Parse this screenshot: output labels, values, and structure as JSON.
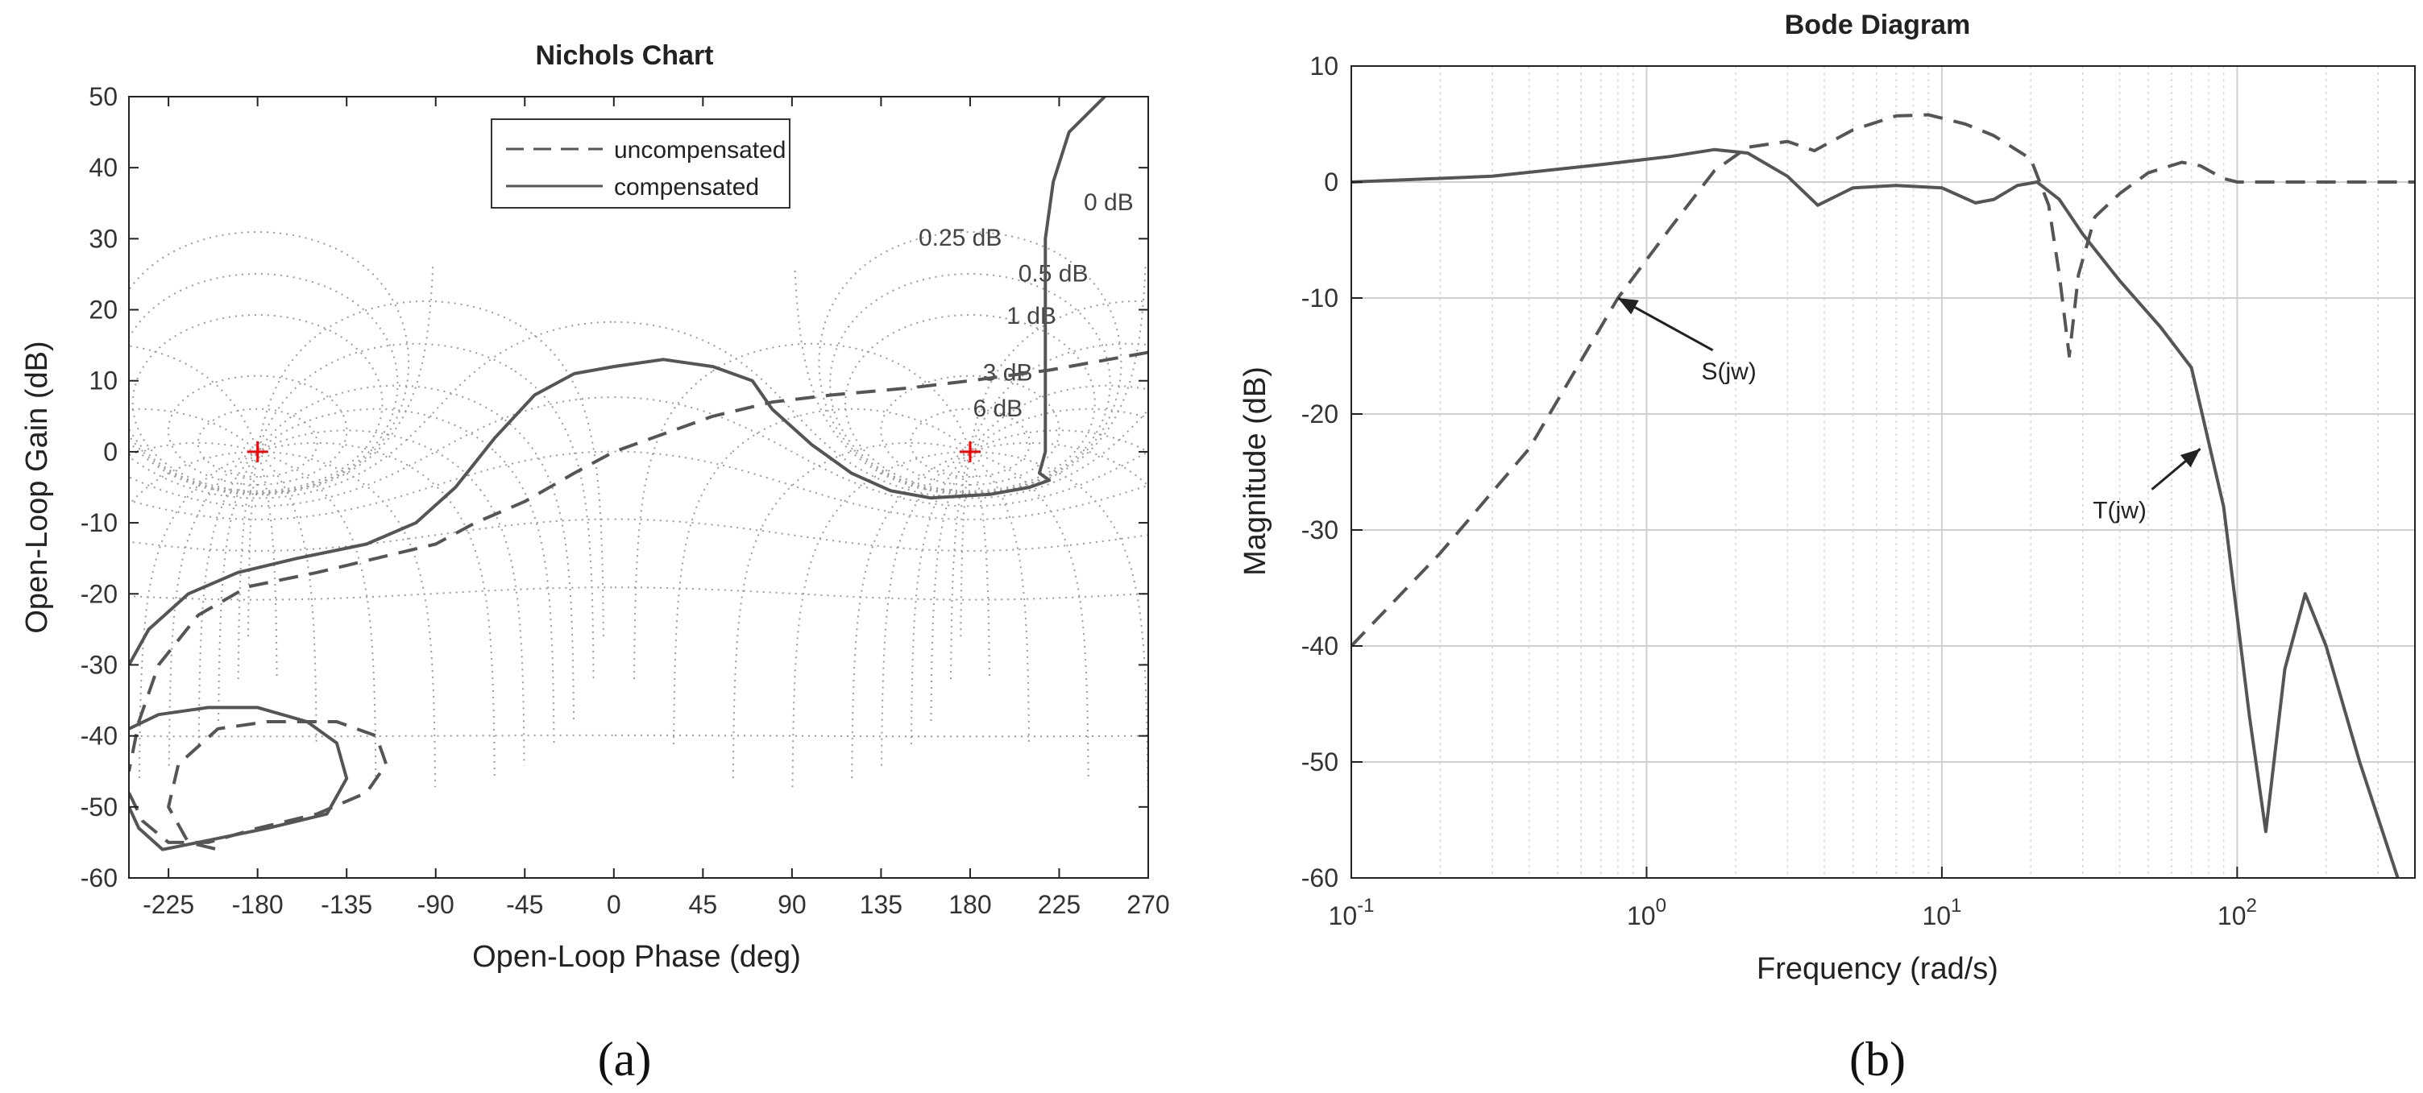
{
  "panel_labels": {
    "a": "(a)",
    "b": "(b)"
  },
  "colors": {
    "curve": "#555555",
    "grid": "#9a9a9a",
    "marker": "#ff0000",
    "axis": "#222222"
  },
  "chart_data": [
    {
      "type": "line",
      "title": "Nichols Chart",
      "xlabel": "Open-Loop Phase (deg)",
      "ylabel": "Open-Loop Gain (dB)",
      "xlim": [
        -245,
        270
      ],
      "ylim": [
        -60,
        50
      ],
      "xticks": [
        -225,
        -180,
        -135,
        -90,
        -45,
        0,
        45,
        90,
        135,
        180,
        225,
        270
      ],
      "yticks": [
        -60,
        -50,
        -40,
        -30,
        -20,
        -10,
        0,
        10,
        20,
        30,
        40,
        50
      ],
      "tick_labels_x": [
        "-225",
        "-180",
        "-135",
        "-90",
        "-45",
        "0",
        "45",
        "90",
        "135",
        "180",
        "225",
        "270"
      ],
      "tick_labels_y": [
        "-60",
        "-50",
        "-40",
        "-30",
        "-20",
        "-10",
        "0",
        "10",
        "20",
        "30",
        "40",
        "50"
      ],
      "legend": {
        "position": "top-center",
        "entries": [
          {
            "label": "uncompensated",
            "style": "dashed"
          },
          {
            "label": "compensated",
            "style": "solid"
          }
        ]
      },
      "grid_labels": [
        {
          "text": "0 dB",
          "x": 250,
          "y": 34
        },
        {
          "text": "0.25 dB",
          "x": 175,
          "y": 29
        },
        {
          "text": "0.5 dB",
          "x": 222,
          "y": 24
        },
        {
          "text": "1 dB",
          "x": 211,
          "y": 18
        },
        {
          "text": "3 dB",
          "x": 199,
          "y": 10
        },
        {
          "text": "6 dB",
          "x": 194,
          "y": 5
        }
      ],
      "markers": [
        {
          "x": -180,
          "y": 0
        },
        {
          "x": 180,
          "y": 0
        }
      ],
      "series": [
        {
          "name": "uncompensated",
          "style": "dashed",
          "points": [
            [
              270,
              14
            ],
            [
              220,
              11.5
            ],
            [
              180,
              10
            ],
            [
              150,
              9
            ],
            [
              110,
              8
            ],
            [
              80,
              7
            ],
            [
              50,
              5
            ],
            [
              20,
              2
            ],
            [
              0,
              0
            ],
            [
              -20,
              -3
            ],
            [
              -45,
              -7
            ],
            [
              -70,
              -10
            ],
            [
              -90,
              -13
            ],
            [
              -120,
              -15
            ],
            [
              -150,
              -17
            ],
            [
              -185,
              -19
            ],
            [
              -210,
              -23
            ],
            [
              -230,
              -30
            ],
            [
              -240,
              -38
            ],
            [
              -245,
              -45
            ]
          ]
        },
        {
          "name": "uncompensated-loop",
          "style": "dashed",
          "points": [
            [
              -245,
              -48
            ],
            [
              -238,
              -52
            ],
            [
              -225,
              -55
            ],
            [
              -205,
              -55
            ],
            [
              -180,
              -53
            ],
            [
              -150,
              -51
            ],
            [
              -125,
              -48
            ],
            [
              -115,
              -44
            ],
            [
              -120,
              -40
            ],
            [
              -140,
              -38
            ],
            [
              -175,
              -38
            ],
            [
              -200,
              -39
            ],
            [
              -220,
              -44
            ],
            [
              -225,
              -50
            ],
            [
              -215,
              -55
            ],
            [
              -200,
              -56
            ]
          ]
        },
        {
          "name": "compensated",
          "style": "solid",
          "points": [
            [
              248,
              50
            ],
            [
              230,
              45
            ],
            [
              222,
              38
            ],
            [
              218,
              30
            ],
            [
              218,
              20
            ],
            [
              218,
              10
            ],
            [
              218,
              0
            ],
            [
              215,
              -3
            ],
            [
              220,
              -4
            ],
            [
              210,
              -5
            ],
            [
              190,
              -6
            ],
            [
              160,
              -6.5
            ],
            [
              140,
              -5.5
            ],
            [
              120,
              -3
            ],
            [
              100,
              1
            ],
            [
              80,
              6
            ],
            [
              70,
              10
            ],
            [
              50,
              12
            ],
            [
              25,
              13
            ],
            [
              0,
              12
            ],
            [
              -20,
              11
            ],
            [
              -40,
              8
            ],
            [
              -60,
              2
            ],
            [
              -80,
              -5
            ],
            [
              -100,
              -10
            ],
            [
              -125,
              -13
            ],
            [
              -160,
              -15
            ],
            [
              -190,
              -17
            ],
            [
              -215,
              -20
            ],
            [
              -235,
              -25
            ],
            [
              -245,
              -30
            ]
          ]
        },
        {
          "name": "compensated-loop",
          "style": "solid",
          "points": [
            [
              -245,
              -39
            ],
            [
              -230,
              -37
            ],
            [
              -205,
              -36
            ],
            [
              -180,
              -36
            ],
            [
              -155,
              -38
            ],
            [
              -140,
              -41
            ],
            [
              -135,
              -46
            ],
            [
              -145,
              -51
            ],
            [
              -175,
              -53
            ],
            [
              -210,
              -55
            ],
            [
              -228,
              -56
            ],
            [
              -240,
              -53
            ],
            [
              -245,
              -50
            ]
          ]
        }
      ]
    },
    {
      "type": "line",
      "title": "Bode Diagram",
      "xlabel": "Frequency  (rad/s)",
      "ylabel": "Magnitude (dB)",
      "xscale": "log",
      "xlim": [
        0.1,
        400
      ],
      "ylim": [
        -60,
        10
      ],
      "xticks": [
        0.1,
        1,
        10,
        100
      ],
      "tick_labels_x": [
        {
          "base": "10",
          "exp": "-1"
        },
        {
          "base": "10",
          "exp": "0"
        },
        {
          "base": "10",
          "exp": "1"
        },
        {
          "base": "10",
          "exp": "2"
        }
      ],
      "yticks": [
        -60,
        -50,
        -40,
        -30,
        -20,
        -10,
        0,
        10
      ],
      "tick_labels_y": [
        "-60",
        "-50",
        "-40",
        "-30",
        "-20",
        "-10",
        "0",
        "10"
      ],
      "annotations": [
        {
          "text": "S(jw)",
          "text_x": 1.9,
          "text_y": -17,
          "arrow_to_x": 0.8,
          "arrow_to_y": -10
        },
        {
          "text": "T(jw)",
          "text_x": 40,
          "text_y": -29,
          "arrow_to_x": 75,
          "arrow_to_y": -23
        }
      ],
      "series": [
        {
          "name": "S(jw)",
          "style": "dashed",
          "points": [
            [
              0.1,
              -40
            ],
            [
              0.2,
              -32
            ],
            [
              0.4,
              -23
            ],
            [
              0.8,
              -10
            ],
            [
              1.2,
              -4
            ],
            [
              1.7,
              1
            ],
            [
              2.2,
              3
            ],
            [
              3,
              3.5
            ],
            [
              3.7,
              2.7
            ],
            [
              5,
              4.5
            ],
            [
              7,
              5.7
            ],
            [
              9,
              5.8
            ],
            [
              12,
              5
            ],
            [
              15,
              4
            ],
            [
              20,
              2
            ],
            [
              23,
              -2
            ],
            [
              25,
              -8
            ],
            [
              27,
              -15
            ],
            [
              29,
              -8
            ],
            [
              33,
              -3
            ],
            [
              40,
              -1
            ],
            [
              50,
              0.8
            ],
            [
              65,
              1.7
            ],
            [
              75,
              1.4
            ],
            [
              90,
              0.3
            ],
            [
              100,
              0
            ],
            [
              200,
              0
            ],
            [
              400,
              0
            ]
          ]
        },
        {
          "name": "T(jw)",
          "style": "solid",
          "points": [
            [
              0.1,
              0
            ],
            [
              0.3,
              0.5
            ],
            [
              0.7,
              1.5
            ],
            [
              1.2,
              2.2
            ],
            [
              1.7,
              2.8
            ],
            [
              2.2,
              2.5
            ],
            [
              3,
              0.5
            ],
            [
              3.8,
              -2
            ],
            [
              5,
              -0.5
            ],
            [
              7,
              -0.3
            ],
            [
              10,
              -0.5
            ],
            [
              13,
              -1.8
            ],
            [
              15,
              -1.5
            ],
            [
              18,
              -0.3
            ],
            [
              21,
              0
            ],
            [
              25,
              -1.5
            ],
            [
              30,
              -4.5
            ],
            [
              40,
              -8.5
            ],
            [
              55,
              -12.5
            ],
            [
              70,
              -16
            ],
            [
              90,
              -28
            ],
            [
              110,
              -46
            ],
            [
              125,
              -56
            ],
            [
              145,
              -42
            ],
            [
              170,
              -35.5
            ],
            [
              200,
              -40
            ],
            [
              260,
              -50
            ],
            [
              350,
              -60
            ]
          ]
        }
      ]
    }
  ]
}
